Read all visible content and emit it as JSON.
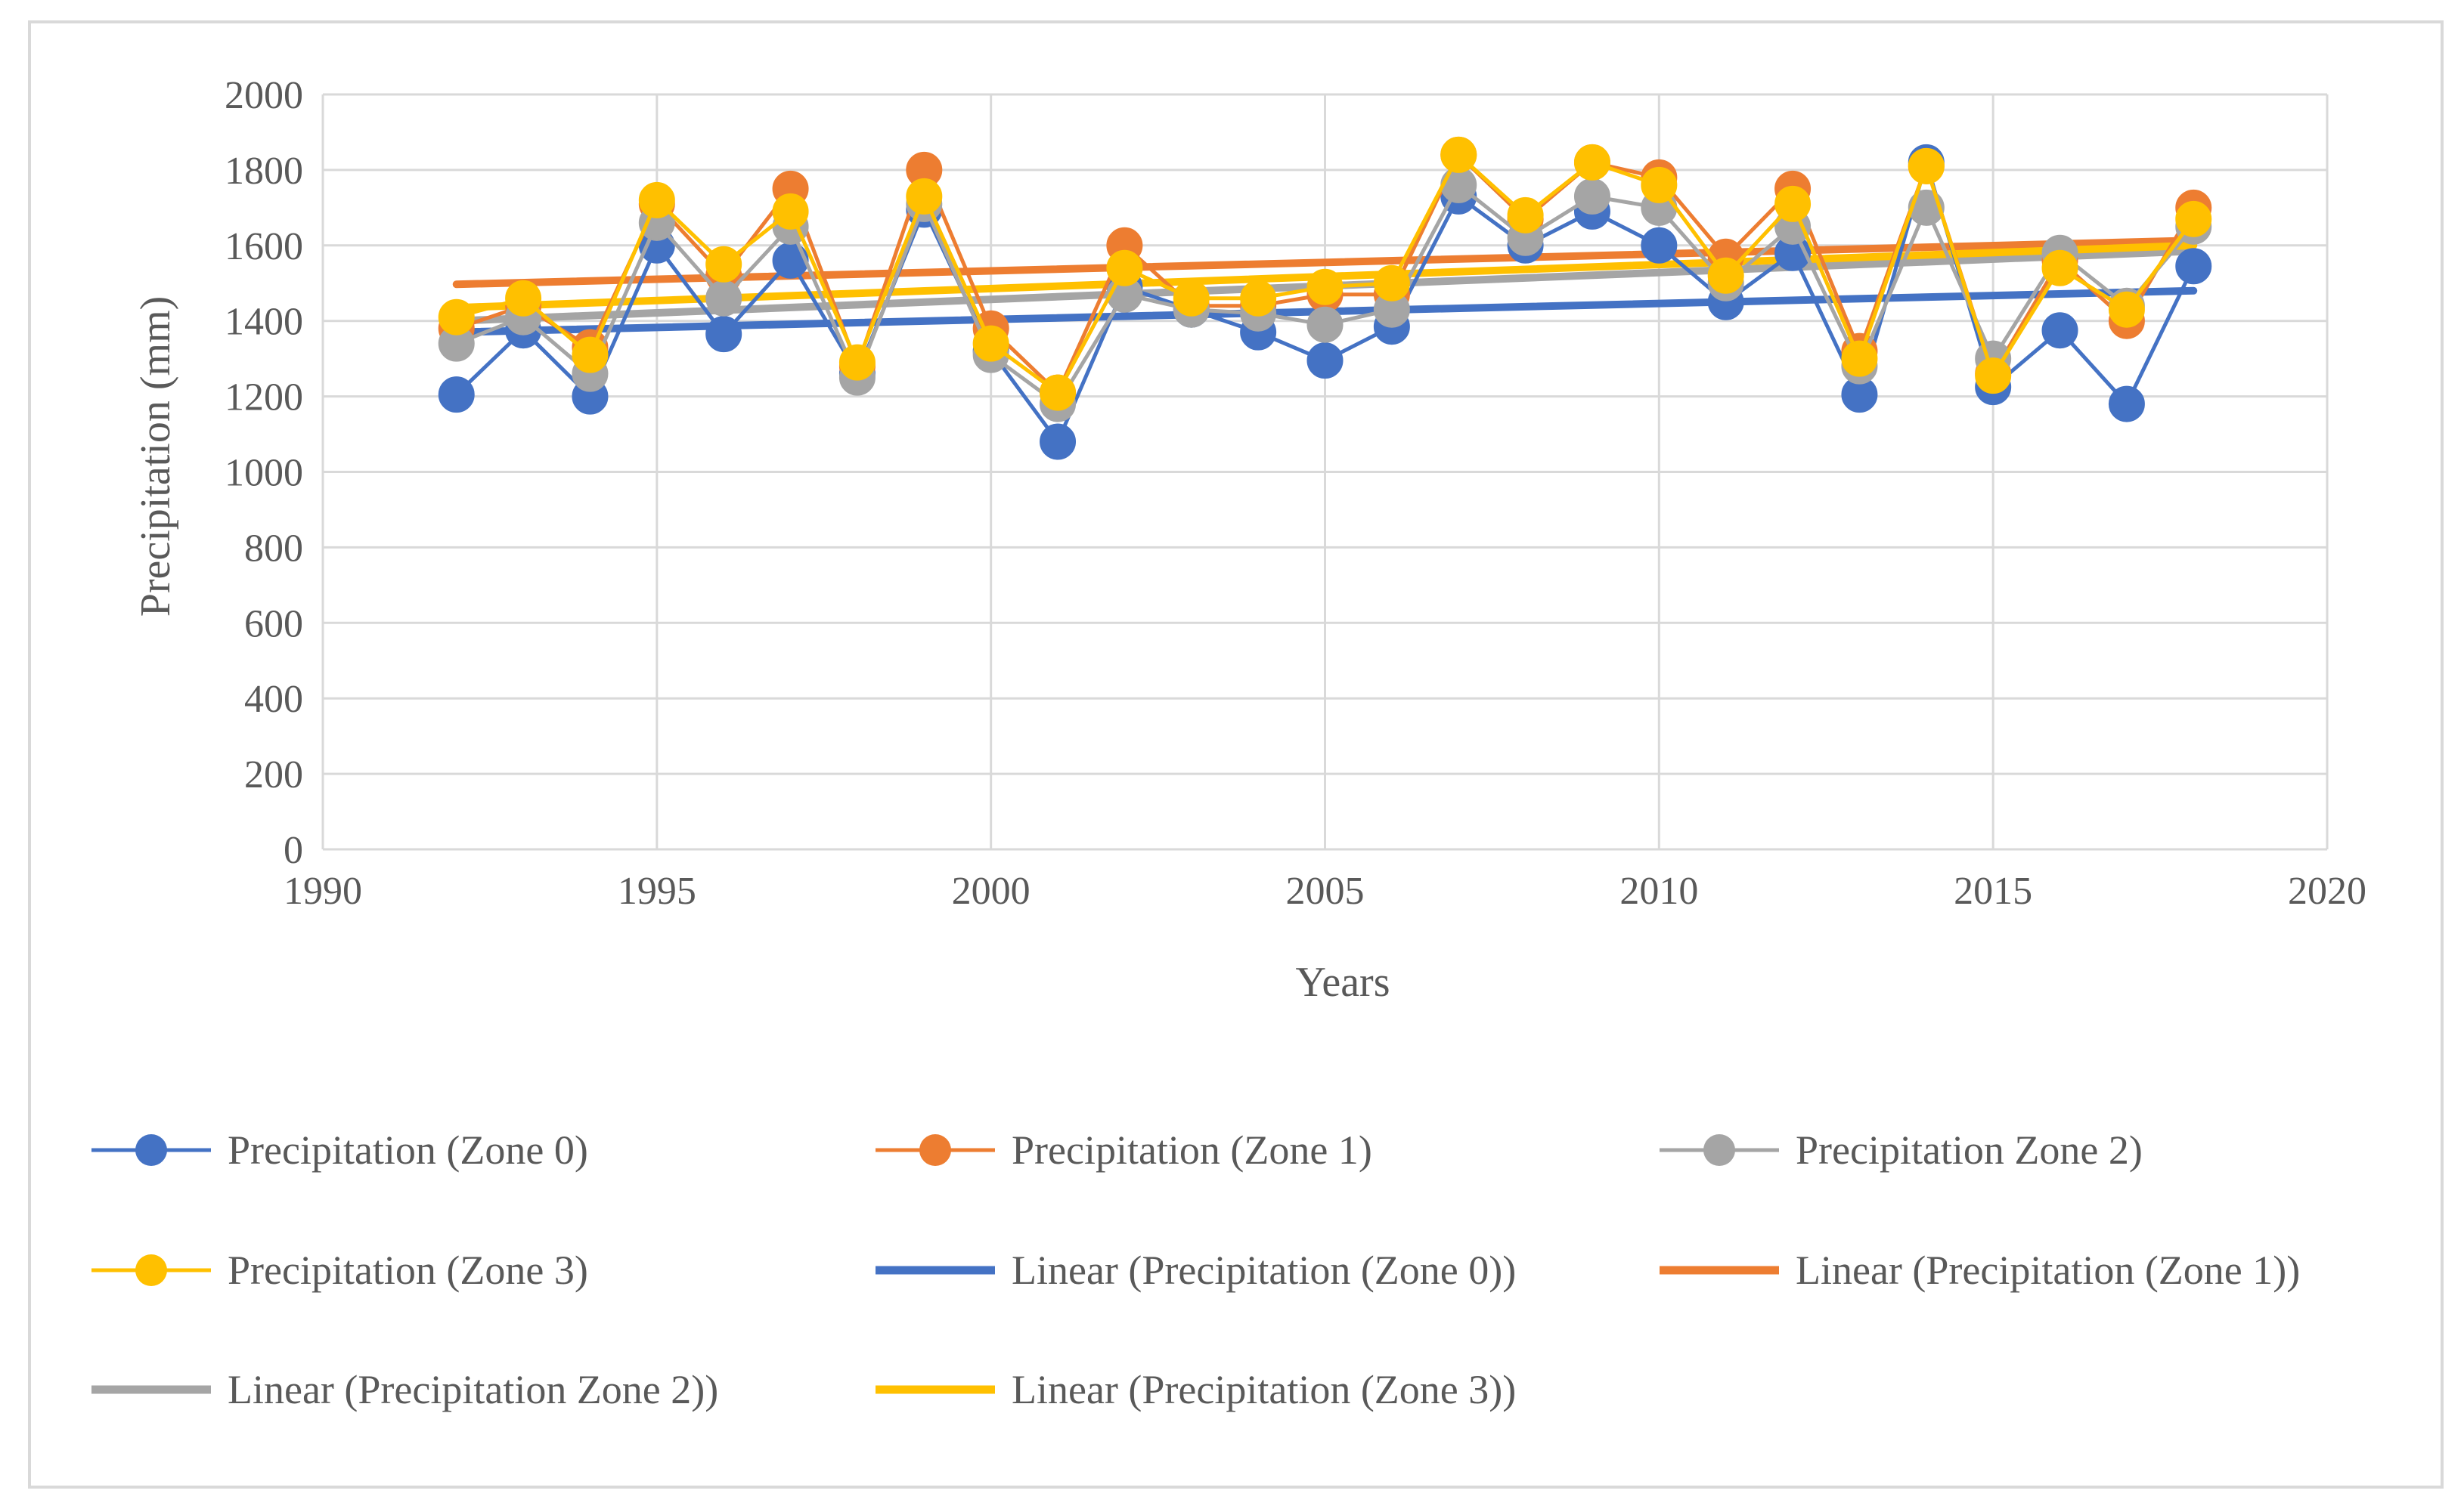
{
  "chart_data": {
    "type": "line",
    "title": "",
    "xlabel": "Years",
    "ylabel": "Precipitation (mm)",
    "xlim": [
      1990,
      2020
    ],
    "ylim": [
      0,
      2000
    ],
    "x_ticks": [
      1990,
      1995,
      2000,
      2005,
      2010,
      2015,
      2020
    ],
    "y_ticks": [
      0,
      200,
      400,
      600,
      800,
      1000,
      1200,
      1400,
      1600,
      1800,
      2000
    ],
    "grid": true,
    "legend_position": "bottom",
    "x": [
      1992,
      1993,
      1994,
      1995,
      1996,
      1997,
      1998,
      1999,
      2000,
      2001,
      2002,
      2003,
      2004,
      2005,
      2006,
      2007,
      2008,
      2009,
      2010,
      2011,
      2012,
      2013,
      2014,
      2015,
      2016,
      2017,
      2018
    ],
    "series": [
      {
        "name": "Precipitation (Zone 0)",
        "color": "#4472c4",
        "values": [
          1205,
          1375,
          1200,
          1600,
          1365,
          1560,
          1260,
          1695,
          1320,
          1080,
          1490,
          1430,
          1370,
          1295,
          1385,
          1730,
          1600,
          1690,
          1600,
          1450,
          1580,
          1205,
          1820,
          1225,
          1375,
          1180,
          1545
        ]
      },
      {
        "name": "Precipitation (Zone 1)",
        "color": "#ed7d31",
        "values": [
          1380,
          1440,
          1330,
          1710,
          1520,
          1750,
          1280,
          1800,
          1380,
          1210,
          1600,
          1440,
          1440,
          1470,
          1470,
          1840,
          1670,
          1820,
          1780,
          1570,
          1750,
          1320,
          1810,
          1260,
          1560,
          1400,
          1700
        ]
      },
      {
        "name": "Precipitation Zone 2)",
        "color": "#a5a5a5",
        "values": [
          1340,
          1410,
          1260,
          1660,
          1460,
          1650,
          1250,
          1710,
          1310,
          1180,
          1470,
          1430,
          1420,
          1390,
          1430,
          1760,
          1620,
          1730,
          1700,
          1500,
          1650,
          1280,
          1700,
          1300,
          1580,
          1440,
          1650
        ]
      },
      {
        "name": "Precipitation (Zone 3)",
        "color": "#ffc000",
        "values": [
          1410,
          1460,
          1310,
          1720,
          1550,
          1690,
          1290,
          1730,
          1340,
          1210,
          1540,
          1460,
          1460,
          1490,
          1500,
          1840,
          1680,
          1820,
          1760,
          1520,
          1710,
          1300,
          1810,
          1255,
          1540,
          1430,
          1670
        ]
      }
    ],
    "trendlines": [
      {
        "name": "Linear (Precipitation (Zone 0))",
        "color": "#4472c4",
        "x": [
          1992,
          2018
        ],
        "y": [
          1370,
          1480
        ]
      },
      {
        "name": "Linear (Precipitation (Zone 1))",
        "color": "#ed7d31",
        "x": [
          1992,
          2018
        ],
        "y": [
          1497,
          1613
        ]
      },
      {
        "name": "Linear (Precipitation Zone 2))",
        "color": "#a5a5a5",
        "x": [
          1992,
          2018
        ],
        "y": [
          1400,
          1585
        ]
      },
      {
        "name": "Linear (Precipitation (Zone 3))",
        "color": "#ffc000",
        "x": [
          1992,
          2018
        ],
        "y": [
          1435,
          1600
        ]
      }
    ]
  },
  "legend": [
    {
      "label": "Precipitation (Zone 0)",
      "color": "#4472c4",
      "kind": "marker"
    },
    {
      "label": "Precipitation (Zone 1)",
      "color": "#ed7d31",
      "kind": "marker"
    },
    {
      "label": "Precipitation Zone 2)",
      "color": "#a5a5a5",
      "kind": "marker"
    },
    {
      "label": "Precipitation (Zone 3)",
      "color": "#ffc000",
      "kind": "marker"
    },
    {
      "label": "Linear (Precipitation (Zone 0))",
      "color": "#4472c4",
      "kind": "line"
    },
    {
      "label": "Linear (Precipitation (Zone 1))",
      "color": "#ed7d31",
      "kind": "line"
    },
    {
      "label": "Linear (Precipitation Zone 2))",
      "color": "#a5a5a5",
      "kind": "line"
    },
    {
      "label": "Linear (Precipitation (Zone 3))",
      "color": "#ffc000",
      "kind": "line"
    }
  ]
}
